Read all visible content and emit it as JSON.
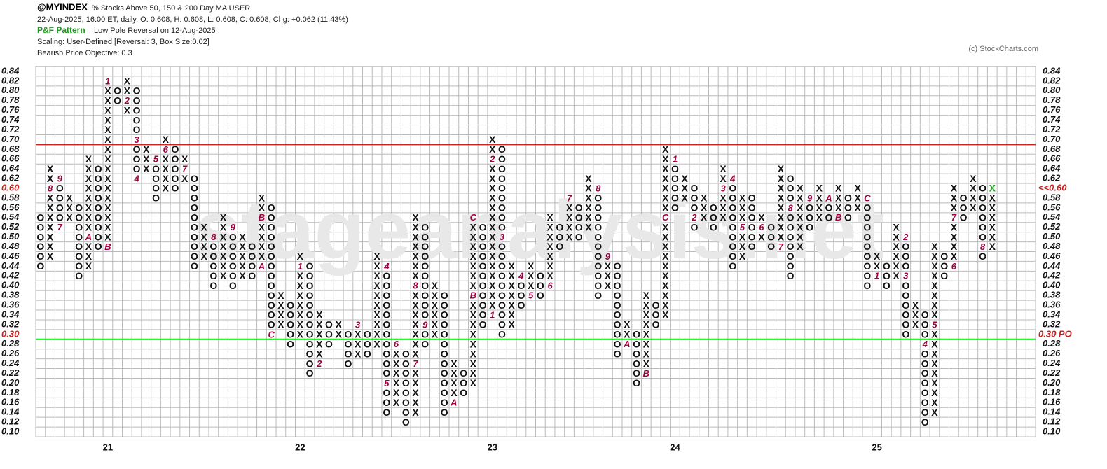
{
  "chart_data": {
    "type": "pnf",
    "symbol": "@MYINDEX",
    "name": "% Stocks Above 50, 150 & 200 Day MA  USER",
    "quote": "22-Aug-2025, 16:00 ET, daily, O: 0.608, H: 0.608, L: 0.608, C: 0.608, Chg: +0.062 (11.43%)",
    "pattern_title": "P&F Pattern",
    "pattern": "Low Pole Reversal on 12-Aug-2025",
    "scaling": "Scaling: User-Defined [Reversal: 3, Box Size:0.02]",
    "objective_text": "Bearish Price Objective: 0.3",
    "copyright": "(c) StockCharts.com",
    "watermark": "stageanalysis.net",
    "box": 0.02,
    "ylim": [
      0.09,
      0.85
    ],
    "xlim": [
      -0.5,
      103.5
    ],
    "yticks": [
      {
        "value": 0.1,
        "label": "0.10"
      },
      0.12,
      0.14,
      0.16,
      0.18,
      {
        "value": 0.2,
        "label": "0.20"
      },
      0.22,
      0.24,
      0.26,
      0.28,
      {
        "value": 0.3,
        "label": "0.30"
      },
      0.32,
      0.34,
      0.36,
      0.38,
      {
        "value": 0.4,
        "label": "0.40"
      },
      0.42,
      0.44,
      0.46,
      0.48,
      {
        "value": 0.5,
        "label": "0.50"
      },
      0.52,
      0.54,
      0.56,
      0.58,
      {
        "value": 0.6,
        "label": "0.60"
      },
      0.62,
      0.64,
      0.66,
      0.68,
      {
        "value": 0.7,
        "label": "0.70"
      },
      0.72,
      0.74,
      0.76,
      0.78,
      {
        "value": 0.8,
        "label": "0.80"
      },
      0.82,
      0.84
    ],
    "grid": true,
    "last_price": {
      "value": 0.6,
      "label": "<<0.60"
    },
    "objective": {
      "value": 0.3,
      "label": "0.30 PO",
      "color": "#00e000"
    },
    "resistance": {
      "value": 0.7,
      "color": "#cc2222"
    },
    "colors": {
      "glyph": "#111111",
      "month": "#a00040",
      "last": "#22aa22"
    },
    "columns": [
      {
        "k": "O",
        "low": 0.44,
        "high": 0.54
      },
      {
        "k": "X",
        "low": 0.46,
        "high": 0.64,
        "m": [
          {
            "at": 0.6,
            "t": "8"
          }
        ]
      },
      {
        "k": "O",
        "low": 0.52,
        "high": 0.62,
        "m": [
          {
            "at": 0.62,
            "t": "9"
          },
          {
            "at": 0.52,
            "t": "7"
          }
        ]
      },
      {
        "k": "X",
        "low": 0.54,
        "high": 0.58
      },
      {
        "k": "O",
        "low": 0.42,
        "high": 0.56
      },
      {
        "k": "X",
        "low": 0.44,
        "high": 0.66,
        "m": [
          {
            "at": 0.5,
            "t": "A"
          }
        ]
      },
      {
        "k": "O",
        "low": 0.48,
        "high": 0.64
      },
      {
        "k": "X",
        "low": 0.48,
        "high": 0.82,
        "year": "21",
        "m": [
          {
            "at": 0.82,
            "t": "1"
          },
          {
            "at": 0.48,
            "t": "B"
          }
        ]
      },
      {
        "k": "O",
        "low": 0.78,
        "high": 0.8
      },
      {
        "k": "X",
        "low": 0.76,
        "high": 0.82,
        "m": [
          {
            "at": 0.78,
            "t": "2"
          }
        ]
      },
      {
        "k": "O",
        "low": 0.62,
        "high": 0.8,
        "m": [
          {
            "at": 0.7,
            "t": "3"
          },
          {
            "at": 0.62,
            "t": "4"
          }
        ]
      },
      {
        "k": "X",
        "low": 0.64,
        "high": 0.68
      },
      {
        "k": "O",
        "low": 0.58,
        "high": 0.66,
        "m": [
          {
            "at": 0.66,
            "t": "5"
          }
        ]
      },
      {
        "k": "X",
        "low": 0.6,
        "high": 0.7,
        "m": [
          {
            "at": 0.68,
            "t": "6"
          }
        ]
      },
      {
        "k": "O",
        "low": 0.6,
        "high": 0.68
      },
      {
        "k": "X",
        "low": 0.62,
        "high": 0.66,
        "m": [
          {
            "at": 0.64,
            "t": "7"
          }
        ]
      },
      {
        "k": "O",
        "low": 0.44,
        "high": 0.62
      },
      {
        "k": "X",
        "low": 0.46,
        "high": 0.52
      },
      {
        "k": "O",
        "low": 0.4,
        "high": 0.5,
        "m": [
          {
            "at": 0.5,
            "t": "8"
          }
        ]
      },
      {
        "k": "X",
        "low": 0.42,
        "high": 0.54
      },
      {
        "k": "O",
        "low": 0.4,
        "high": 0.52,
        "m": [
          {
            "at": 0.52,
            "t": "9"
          }
        ]
      },
      {
        "k": "X",
        "low": 0.42,
        "high": 0.5
      },
      {
        "k": "O",
        "low": 0.42,
        "high": 0.48
      },
      {
        "k": "X",
        "low": 0.44,
        "high": 0.58,
        "m": [
          {
            "at": 0.44,
            "t": "A"
          },
          {
            "at": 0.54,
            "t": "B"
          }
        ]
      },
      {
        "k": "O",
        "low": 0.3,
        "high": 0.56,
        "m": [
          {
            "at": 0.3,
            "t": "C"
          }
        ]
      },
      {
        "k": "X",
        "low": 0.32,
        "high": 0.38
      },
      {
        "k": "O",
        "low": 0.28,
        "high": 0.36
      },
      {
        "k": "X",
        "low": 0.3,
        "high": 0.46,
        "year": "22",
        "m": [
          {
            "at": 0.44,
            "t": "1"
          }
        ]
      },
      {
        "k": "O",
        "low": 0.22,
        "high": 0.44
      },
      {
        "k": "X",
        "low": 0.24,
        "high": 0.34,
        "m": [
          {
            "at": 0.24,
            "t": "2"
          }
        ]
      },
      {
        "k": "O",
        "low": 0.28,
        "high": 0.32
      },
      {
        "k": "X",
        "low": 0.3,
        "high": 0.32
      },
      {
        "k": "O",
        "low": 0.24,
        "high": 0.3
      },
      {
        "k": "X",
        "low": 0.26,
        "high": 0.32,
        "m": [
          {
            "at": 0.32,
            "t": "3"
          }
        ]
      },
      {
        "k": "O",
        "low": 0.26,
        "high": 0.3
      },
      {
        "k": "X",
        "low": 0.28,
        "high": 0.46
      },
      {
        "k": "O",
        "low": 0.14,
        "high": 0.44,
        "m": [
          {
            "at": 0.44,
            "t": "4"
          },
          {
            "at": 0.2,
            "t": "5"
          }
        ]
      },
      {
        "k": "X",
        "low": 0.16,
        "high": 0.28,
        "m": [
          {
            "at": 0.28,
            "t": "6"
          }
        ]
      },
      {
        "k": "O",
        "low": 0.12,
        "high": 0.26
      },
      {
        "k": "X",
        "low": 0.14,
        "high": 0.54,
        "m": [
          {
            "at": 0.24,
            "t": "7"
          },
          {
            "at": 0.4,
            "t": "8"
          }
        ]
      },
      {
        "k": "O",
        "low": 0.28,
        "high": 0.52,
        "m": [
          {
            "at": 0.32,
            "t": "9"
          }
        ]
      },
      {
        "k": "X",
        "low": 0.3,
        "high": 0.4
      },
      {
        "k": "O",
        "low": 0.14,
        "high": 0.38
      },
      {
        "k": "X",
        "low": 0.16,
        "high": 0.24,
        "m": [
          {
            "at": 0.16,
            "t": "A"
          }
        ]
      },
      {
        "k": "O",
        "low": 0.18,
        "high": 0.22
      },
      {
        "k": "X",
        "low": 0.2,
        "high": 0.54,
        "m": [
          {
            "at": 0.54,
            "t": "C"
          },
          {
            "at": 0.38,
            "t": "B"
          }
        ]
      },
      {
        "k": "O",
        "low": 0.32,
        "high": 0.52
      },
      {
        "k": "X",
        "low": 0.34,
        "high": 0.7,
        "year": "23",
        "m": [
          {
            "at": 0.34,
            "t": "1"
          },
          {
            "at": 0.66,
            "t": "2"
          }
        ]
      },
      {
        "k": "O",
        "low": 0.3,
        "high": 0.68,
        "m": [
          {
            "at": 0.5,
            "t": "3"
          }
        ]
      },
      {
        "k": "X",
        "low": 0.32,
        "high": 0.44
      },
      {
        "k": "O",
        "low": 0.36,
        "high": 0.42,
        "m": [
          {
            "at": 0.42,
            "t": "4"
          }
        ]
      },
      {
        "k": "X",
        "low": 0.38,
        "high": 0.44,
        "m": [
          {
            "at": 0.38,
            "t": "5"
          }
        ]
      },
      {
        "k": "O",
        "low": 0.38,
        "high": 0.42
      },
      {
        "k": "X",
        "low": 0.4,
        "high": 0.54,
        "m": [
          {
            "at": 0.4,
            "t": "6"
          }
        ]
      },
      {
        "k": "O",
        "low": 0.48,
        "high": 0.52
      },
      {
        "k": "X",
        "low": 0.5,
        "high": 0.58,
        "m": [
          {
            "at": 0.58,
            "t": "7"
          }
        ]
      },
      {
        "k": "O",
        "low": 0.5,
        "high": 0.56
      },
      {
        "k": "X",
        "low": 0.52,
        "high": 0.62
      },
      {
        "k": "O",
        "low": 0.38,
        "high": 0.6,
        "m": [
          {
            "at": 0.6,
            "t": "8"
          }
        ]
      },
      {
        "k": "X",
        "low": 0.4,
        "high": 0.46,
        "m": [
          {
            "at": 0.46,
            "t": "9"
          }
        ]
      },
      {
        "k": "O",
        "low": 0.26,
        "high": 0.44
      },
      {
        "k": "X",
        "low": 0.28,
        "high": 0.32,
        "m": [
          {
            "at": 0.28,
            "t": "A"
          }
        ]
      },
      {
        "k": "O",
        "low": 0.2,
        "high": 0.3
      },
      {
        "k": "X",
        "low": 0.22,
        "high": 0.38,
        "m": [
          {
            "at": 0.22,
            "t": "B"
          }
        ]
      },
      {
        "k": "O",
        "low": 0.32,
        "high": 0.36
      },
      {
        "k": "X",
        "low": 0.34,
        "high": 0.68,
        "m": [
          {
            "at": 0.54,
            "t": "C"
          }
        ]
      },
      {
        "k": "O",
        "low": 0.56,
        "high": 0.66,
        "year": "24",
        "m": [
          {
            "at": 0.66,
            "t": "1"
          }
        ]
      },
      {
        "k": "X",
        "low": 0.58,
        "high": 0.62
      },
      {
        "k": "O",
        "low": 0.52,
        "high": 0.6,
        "m": [
          {
            "at": 0.54,
            "t": "2"
          }
        ]
      },
      {
        "k": "X",
        "low": 0.54,
        "high": 0.58
      },
      {
        "k": "O",
        "low": 0.52,
        "high": 0.56
      },
      {
        "k": "X",
        "low": 0.54,
        "high": 0.64,
        "m": [
          {
            "at": 0.6,
            "t": "3"
          }
        ]
      },
      {
        "k": "O",
        "low": 0.44,
        "high": 0.62,
        "m": [
          {
            "at": 0.62,
            "t": "4"
          }
        ]
      },
      {
        "k": "X",
        "low": 0.46,
        "high": 0.58,
        "m": [
          {
            "at": 0.52,
            "t": "5"
          }
        ]
      },
      {
        "k": "O",
        "low": 0.48,
        "high": 0.58
      },
      {
        "k": "X",
        "low": 0.5,
        "high": 0.54,
        "m": [
          {
            "at": 0.52,
            "t": "6"
          }
        ]
      },
      {
        "k": "O",
        "low": 0.48,
        "high": 0.52
      },
      {
        "k": "X",
        "low": 0.48,
        "high": 0.64,
        "m": [
          {
            "at": 0.48,
            "t": "7"
          }
        ]
      },
      {
        "k": "O",
        "low": 0.42,
        "high": 0.62,
        "m": [
          {
            "at": 0.56,
            "t": "8"
          }
        ]
      },
      {
        "k": "X",
        "low": 0.48,
        "high": 0.6
      },
      {
        "k": "O",
        "low": 0.52,
        "high": 0.58,
        "m": [
          {
            "at": 0.58,
            "t": "9"
          }
        ]
      },
      {
        "k": "X",
        "low": 0.54,
        "high": 0.6
      },
      {
        "k": "O",
        "low": 0.54,
        "high": 0.58,
        "m": [
          {
            "at": 0.58,
            "t": "A"
          }
        ]
      },
      {
        "k": "X",
        "low": 0.54,
        "high": 0.6,
        "m": [
          {
            "at": 0.54,
            "t": "B"
          }
        ]
      },
      {
        "k": "O",
        "low": 0.54,
        "high": 0.58
      },
      {
        "k": "X",
        "low": 0.56,
        "high": 0.6
      },
      {
        "k": "O",
        "low": 0.4,
        "high": 0.58,
        "m": [
          {
            "at": 0.58,
            "t": "C"
          }
        ]
      },
      {
        "k": "X",
        "low": 0.42,
        "high": 0.46,
        "year": "25",
        "m": [
          {
            "at": 0.42,
            "t": "1"
          }
        ]
      },
      {
        "k": "O",
        "low": 0.4,
        "high": 0.44
      },
      {
        "k": "X",
        "low": 0.42,
        "high": 0.52
      },
      {
        "k": "O",
        "low": 0.3,
        "high": 0.5,
        "m": [
          {
            "at": 0.5,
            "t": "2"
          },
          {
            "at": 0.42,
            "t": "3"
          }
        ]
      },
      {
        "k": "X",
        "low": 0.32,
        "high": 0.36
      },
      {
        "k": "O",
        "low": 0.12,
        "high": 0.34,
        "m": [
          {
            "at": 0.28,
            "t": "4"
          }
        ]
      },
      {
        "k": "X",
        "low": 0.14,
        "high": 0.48,
        "m": [
          {
            "at": 0.32,
            "t": "5"
          }
        ]
      },
      {
        "k": "O",
        "low": 0.42,
        "high": 0.46
      },
      {
        "k": "X",
        "low": 0.44,
        "high": 0.6,
        "m": [
          {
            "at": 0.44,
            "t": "6"
          },
          {
            "at": 0.54,
            "t": "7"
          }
        ]
      },
      {
        "k": "O",
        "low": 0.54,
        "high": 0.58
      },
      {
        "k": "X",
        "low": 0.56,
        "high": 0.62
      },
      {
        "k": "O",
        "low": 0.46,
        "high": 0.6,
        "m": [
          {
            "at": 0.48,
            "t": "8"
          }
        ]
      },
      {
        "k": "X",
        "low": 0.48,
        "high": 0.6,
        "last": true
      }
    ]
  }
}
